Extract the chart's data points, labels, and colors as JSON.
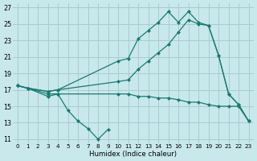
{
  "xlabel": "Humidex (Indice chaleur)",
  "xlim": [
    -0.5,
    23.5
  ],
  "ylim": [
    10.5,
    27.5
  ],
  "xticks": [
    0,
    1,
    2,
    3,
    4,
    5,
    6,
    7,
    8,
    9,
    10,
    11,
    12,
    13,
    14,
    15,
    16,
    17,
    18,
    19,
    20,
    21,
    22,
    23
  ],
  "yticks": [
    11,
    13,
    15,
    17,
    19,
    21,
    23,
    25,
    27
  ],
  "bg_color": "#c8e8ec",
  "grid_color": "#a8ccd0",
  "line_color": "#1a7a6e",
  "line1_x": [
    0,
    1,
    3,
    4,
    5,
    6,
    7,
    8,
    9
  ],
  "line1_y": [
    17.5,
    17.2,
    16.2,
    16.5,
    14.5,
    13.2,
    12.3,
    11.0,
    12.2
  ],
  "line2_x": [
    0,
    1,
    3,
    4,
    10,
    11,
    12,
    13,
    14,
    15,
    16,
    17,
    18,
    19,
    20,
    21,
    22,
    23
  ],
  "line2_y": [
    17.5,
    17.2,
    16.8,
    17.0,
    20.5,
    20.8,
    23.2,
    24.2,
    25.2,
    26.5,
    25.2,
    26.5,
    25.2,
    24.8,
    21.2,
    16.5,
    15.2,
    13.2
  ],
  "line3_x": [
    0,
    1,
    3,
    4,
    10,
    11,
    12,
    13,
    14,
    15,
    16,
    17,
    18,
    19,
    20,
    21,
    22,
    23
  ],
  "line3_y": [
    17.5,
    17.2,
    16.8,
    17.0,
    18.0,
    18.2,
    19.5,
    20.5,
    21.5,
    22.5,
    24.0,
    25.5,
    25.0,
    24.8,
    21.2,
    16.5,
    15.2,
    13.2
  ],
  "line4_x": [
    0,
    1,
    3,
    4,
    10,
    11,
    12,
    13,
    14,
    15,
    16,
    17,
    18,
    19,
    20,
    21,
    22,
    23
  ],
  "line4_y": [
    17.5,
    17.2,
    16.5,
    16.5,
    16.5,
    16.5,
    16.2,
    16.2,
    16.0,
    16.0,
    15.8,
    15.5,
    15.5,
    15.2,
    15.0,
    15.0,
    15.0,
    13.2
  ]
}
